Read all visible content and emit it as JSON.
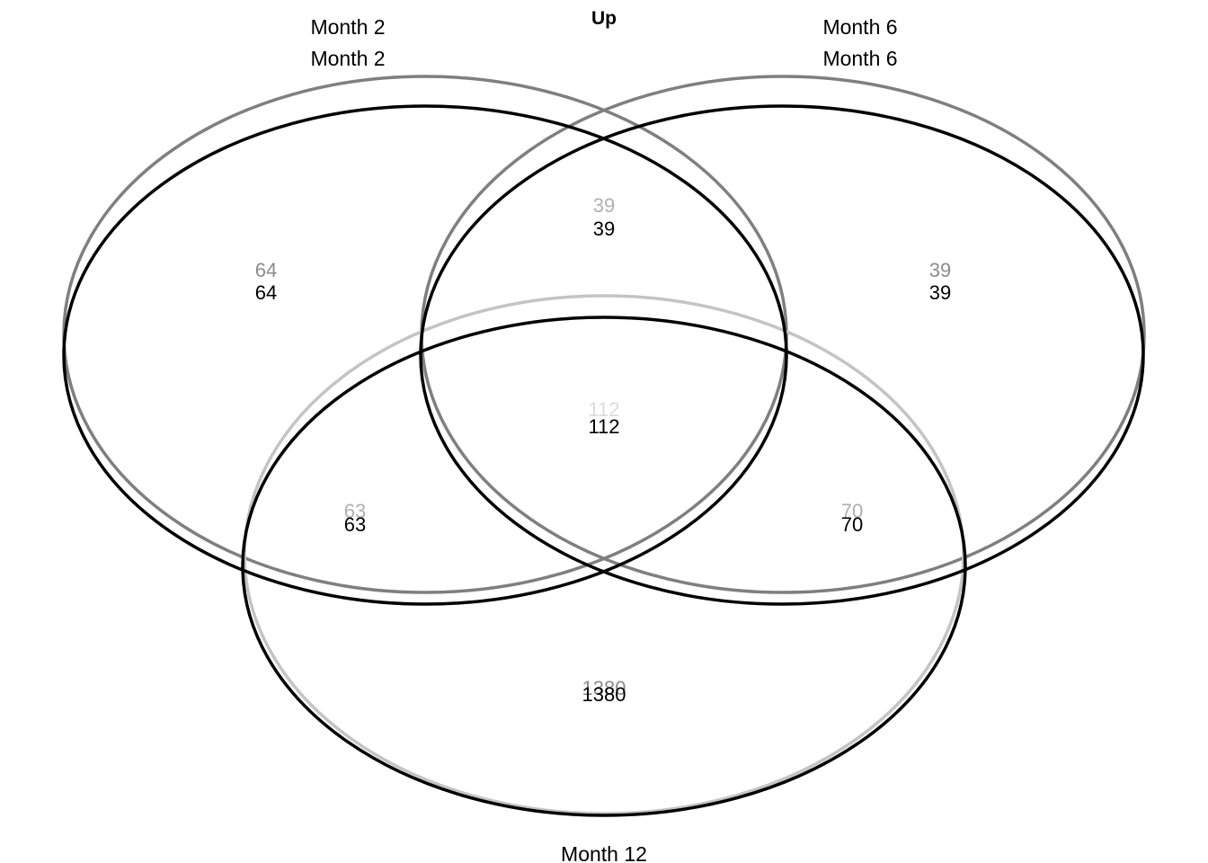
{
  "title": "Up",
  "colors": {
    "primary": "#000000",
    "shadow_outline": "#7f7f7f",
    "shadow_text": "#b0b0b0",
    "background": "#ffffff"
  },
  "sets": {
    "month2": "Month 2",
    "month6": "Month 6",
    "month12": "Month 12"
  },
  "layers": [
    "shadow",
    "primary"
  ],
  "regions": {
    "month2_only": "64",
    "month6_only": "39",
    "month12_only": "1380",
    "month2_month6": "39",
    "month2_month12": "63",
    "month6_month12": "70",
    "all_three": "112"
  }
}
